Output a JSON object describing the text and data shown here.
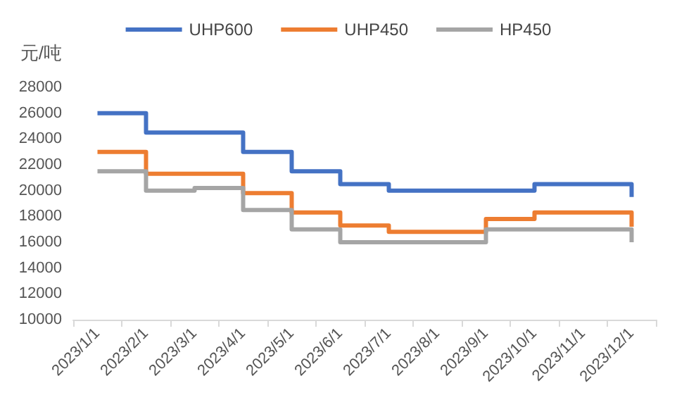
{
  "chart_data": {
    "type": "step",
    "ylabel": "元/吨",
    "categories": [
      "2023/1/1",
      "2023/2/1",
      "2023/3/1",
      "2023/4/1",
      "2023/5/1",
      "2023/6/1",
      "2023/7/1",
      "2023/8/1",
      "2023/9/1",
      "2023/10/1",
      "2023/11/1",
      "2023/12/1"
    ],
    "series": [
      {
        "name": "UHP600",
        "color": "#4472c4",
        "values": [
          26000,
          24500,
          24500,
          23000,
          21500,
          20500,
          20000,
          20000,
          20000,
          20500,
          20500,
          19500
        ]
      },
      {
        "name": "UHP450",
        "color": "#ed7d31",
        "values": [
          23000,
          21300,
          21300,
          19800,
          18300,
          17300,
          16800,
          16800,
          17800,
          18300,
          18300,
          17200
        ]
      },
      {
        "name": "HP450",
        "color": "#a5a5a5",
        "values": [
          21500,
          20000,
          20200,
          18500,
          17000,
          16000,
          16000,
          16000,
          17000,
          17000,
          17000,
          16000
        ]
      }
    ],
    "ylim": [
      10000,
      28000
    ],
    "yticks": [
      10000,
      12000,
      14000,
      16000,
      18000,
      20000,
      22000,
      24000,
      26000,
      28000
    ],
    "grid": false,
    "legend": "top",
    "marker": "none",
    "line_style": "solid"
  }
}
